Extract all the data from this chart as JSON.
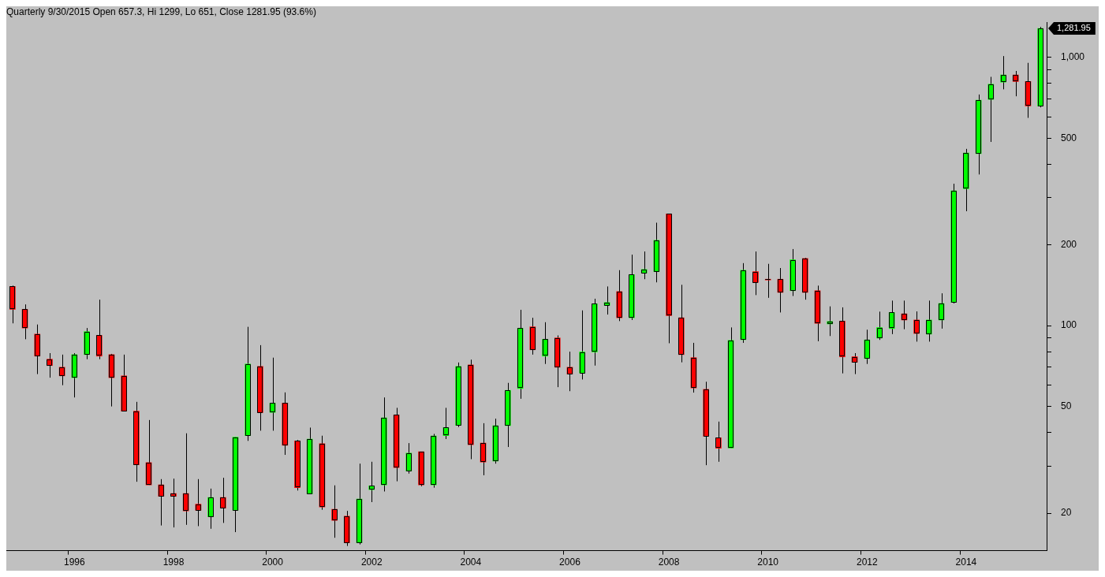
{
  "chart_data": {
    "type": "candlestick",
    "title": "Quarterly 9/30/2015 Open 657.3, Hi 1299, Lo 651, Close 1281.95 (93.6%)",
    "categories": [
      null,
      null,
      null,
      null,
      null,
      "1996",
      null,
      null,
      null,
      null,
      null,
      null,
      null,
      "1998",
      null,
      null,
      null,
      null,
      null,
      null,
      null,
      "2000",
      null,
      null,
      null,
      null,
      null,
      null,
      null,
      "2002",
      null,
      null,
      null,
      null,
      null,
      null,
      null,
      "2004",
      null,
      null,
      null,
      null,
      null,
      null,
      null,
      "2006",
      null,
      null,
      null,
      null,
      null,
      null,
      null,
      "2008",
      null,
      null,
      null,
      null,
      null,
      null,
      null,
      "2010",
      null,
      null,
      null,
      null,
      null,
      null,
      null,
      "2012",
      null,
      null,
      null,
      null,
      null,
      null,
      null,
      "2014",
      null,
      null,
      null,
      null,
      null,
      null
    ],
    "ohlc": [
      [
        140,
        141,
        102,
        115
      ],
      [
        115,
        120,
        89,
        98
      ],
      [
        93,
        101,
        66,
        77
      ],
      [
        75,
        79,
        64,
        71
      ],
      [
        70,
        78,
        60,
        65
      ],
      [
        64,
        79,
        54,
        78
      ],
      [
        78,
        98,
        75,
        95
      ],
      [
        92,
        125,
        75,
        77
      ],
      [
        78,
        78.5,
        50,
        64
      ],
      [
        65,
        78,
        48,
        48
      ],
      [
        48,
        52,
        26.2,
        30.3
      ],
      [
        30.9,
        44.5,
        25.5,
        25.5
      ],
      [
        25.5,
        26.8,
        18,
        23.1
      ],
      [
        23.7,
        26.9,
        17.7,
        23.1
      ],
      [
        23.7,
        39.7,
        18.1,
        20.4
      ],
      [
        21.6,
        26.8,
        17.9,
        20.5
      ],
      [
        19.4,
        24.7,
        17.5,
        22.9
      ],
      [
        22.9,
        27.1,
        18.4,
        20.9
      ],
      [
        20.5,
        38.4,
        17,
        38.4
      ],
      [
        38.9,
        99,
        37.2,
        71.9
      ],
      [
        70.5,
        84.6,
        40.6,
        47.4
      ],
      [
        47.5,
        76,
        40.6,
        51.5
      ],
      [
        51.5,
        56.4,
        33,
        35.8
      ],
      [
        37.2,
        37.5,
        24.3,
        24.9
      ],
      [
        23.6,
        41.7,
        23.6,
        37.8
      ],
      [
        36.3,
        38.9,
        20.6,
        21.1
      ],
      [
        20.7,
        25.4,
        16.2,
        18.8
      ],
      [
        19.5,
        20.4,
        15.1,
        15.5
      ],
      [
        15.5,
        30.6,
        15.3,
        22.6
      ],
      [
        24.5,
        31.1,
        22,
        25.3
      ],
      [
        25.5,
        54,
        24.1,
        45.3
      ],
      [
        46.5,
        49.4,
        26.3,
        29.6
      ],
      [
        28.7,
        36.5,
        28.1,
        33.5
      ],
      [
        33.9,
        33.9,
        25.2,
        25.5
      ],
      [
        25.5,
        39.5,
        24.9,
        38.8
      ],
      [
        38.9,
        49.4,
        37.8,
        41.7
      ],
      [
        42.5,
        72.9,
        41.9,
        70.5
      ],
      [
        71.4,
        74.7,
        31.8,
        36
      ],
      [
        36.5,
        43.3,
        27.7,
        31
      ],
      [
        31.3,
        45,
        30.6,
        42.4
      ],
      [
        42.4,
        61.2,
        35.3,
        57.4
      ],
      [
        58.3,
        114.6,
        53.4,
        97.8
      ],
      [
        99,
        107,
        78,
        81.3
      ],
      [
        77,
        103,
        72,
        89
      ],
      [
        90,
        92,
        59,
        70
      ],
      [
        70,
        80,
        57,
        66
      ],
      [
        66.6,
        114,
        63,
        79.8
      ],
      [
        79.8,
        126,
        71,
        120.6
      ],
      [
        119,
        140,
        110,
        122
      ],
      [
        134,
        161,
        104,
        107
      ],
      [
        107,
        184,
        105,
        155
      ],
      [
        157,
        189,
        149,
        162
      ],
      [
        159,
        242,
        145,
        208
      ],
      [
        261,
        261,
        86,
        109
      ],
      [
        107,
        142,
        73,
        78
      ],
      [
        76,
        86.3,
        56.3,
        58.6
      ],
      [
        57.9,
        61.8,
        30.2,
        38.7
      ],
      [
        38.2,
        43.9,
        31.1,
        34.9
      ],
      [
        35,
        98.5,
        35,
        88.1
      ],
      [
        88.6,
        171,
        86.3,
        161
      ],
      [
        159,
        189,
        130,
        145
      ],
      [
        149,
        170,
        127,
        148
      ],
      [
        149,
        164,
        112,
        133
      ],
      [
        135,
        193,
        129,
        176
      ],
      [
        178,
        179,
        125,
        133
      ],
      [
        135,
        141,
        87.5,
        102
      ],
      [
        101.5,
        118,
        91.5,
        103.7
      ],
      [
        104,
        117,
        66.4,
        76.5
      ],
      [
        76.6,
        79,
        66,
        73
      ],
      [
        75.4,
        96.6,
        72,
        88.5
      ],
      [
        89.9,
        112.8,
        88.5,
        98.4
      ],
      [
        97.5,
        124,
        93,
        112
      ],
      [
        110.7,
        124,
        97,
        105
      ],
      [
        105,
        113,
        87.2,
        93.5
      ],
      [
        93,
        124,
        87.2,
        105
      ],
      [
        105,
        132,
        97.5,
        121
      ],
      [
        122,
        338,
        121,
        318
      ],
      [
        324,
        456,
        267,
        440
      ],
      [
        438,
        727,
        366,
        692
      ],
      [
        697,
        846,
        484,
        794
      ],
      [
        808,
        1011,
        760,
        860
      ],
      [
        860,
        890,
        716,
        813
      ],
      [
        813,
        954,
        595,
        659
      ],
      [
        657.3,
        1299,
        651,
        1281.95
      ]
    ],
    "colors": [
      "#ff0000",
      "#ff0000",
      "#ff0000",
      "#ff0000",
      "#ff0000",
      "#00ff00",
      "#00ff00",
      "#ff0000",
      "#ff0000",
      "#ff0000",
      "#ff0000",
      "#ff0000",
      "#ff0000",
      "#ff0000",
      "#ff0000",
      "#ff0000",
      "#00ff00",
      "#ff0000",
      "#00ff00",
      "#00ff00",
      "#ff0000",
      "#00ff00",
      "#ff0000",
      "#ff0000",
      "#00ff00",
      "#ff0000",
      "#ff0000",
      "#ff0000",
      "#00ff00",
      "#00ff00",
      "#00ff00",
      "#ff0000",
      "#00ff00",
      "#ff0000",
      "#00ff00",
      "#00ff00",
      "#00ff00",
      "#ff0000",
      "#ff0000",
      "#00ff00",
      "#00ff00",
      "#00ff00",
      "#ff0000",
      "#00ff00",
      "#ff0000",
      "#ff0000",
      "#00ff00",
      "#00ff00",
      "#00ff00",
      "#ff0000",
      "#00ff00",
      "#00ff00",
      "#00ff00",
      "#ff0000",
      "#ff0000",
      "#ff0000",
      "#ff0000",
      "#ff0000",
      "#00ff00",
      "#00ff00",
      "#ff0000",
      "#ff0000",
      "#ff0000",
      "#00ff00",
      "#ff0000",
      "#ff0000",
      "#00ff00",
      "#ff0000",
      "#ff0000",
      "#00ff00",
      "#00ff00",
      "#00ff00",
      "#ff0000",
      "#ff0000",
      "#00ff00",
      "#00ff00",
      "#00ff00",
      "#00ff00",
      "#00ff00",
      "#00ff00",
      "#00ff00",
      "#ff0000",
      "#ff0000",
      "#00ff00"
    ],
    "log": true,
    "ylim": [
      14.5,
      1350
    ],
    "yticks": [
      20,
      {
        "value": 30,
        "label": null
      },
      {
        "value": 40,
        "label": null
      },
      50,
      {
        "value": 60,
        "label": null
      },
      {
        "value": 70,
        "label": null
      },
      {
        "value": 80,
        "label": null
      },
      {
        "value": 90,
        "label": null
      },
      100,
      200,
      {
        "value": 300,
        "label": null
      },
      {
        "value": 400,
        "label": null
      },
      500,
      {
        "value": 600,
        "label": null
      },
      {
        "value": 700,
        "label": null
      },
      {
        "value": 800,
        "label": null
      },
      {
        "value": 900,
        "label": null
      },
      {
        "value": 1000,
        "label": "1,000"
      }
    ],
    "annotations": [
      "1,281.95"
    ]
  }
}
